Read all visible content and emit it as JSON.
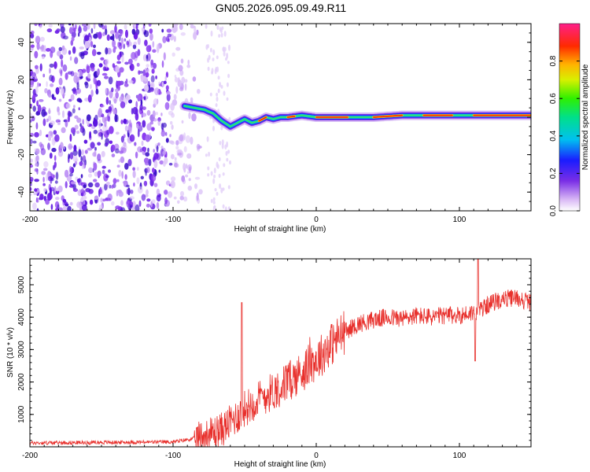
{
  "title": "GN05.2026.095.09.49.R11",
  "chart_data": [
    {
      "type": "heatmap",
      "xlabel": "Height of straight line (km)",
      "ylabel": "Frequency (Hz)",
      "xlim": [
        -200,
        150
      ],
      "ylim": [
        -50,
        50
      ],
      "xticks": [
        -200,
        -100,
        0,
        100
      ],
      "yticks": [
        -40,
        -20,
        0,
        20,
        40
      ],
      "colorbar": {
        "label": "Normalized spectral amplitude",
        "range": [
          0,
          1
        ],
        "ticks": [
          "0.0",
          "0.2",
          "0.4",
          "0.6",
          "0.8"
        ]
      },
      "noise_region": {
        "x_from": -200,
        "x_to": -77
      },
      "signal_trace": {
        "x": [
          -92,
          -85,
          -78,
          -72,
          -66,
          -60,
          -55,
          -50,
          -45,
          -40,
          -35,
          -30,
          -25,
          -20,
          -10,
          0,
          20,
          40,
          60,
          80,
          100,
          120,
          150
        ],
        "y": [
          6,
          5,
          4,
          2,
          -2,
          -5,
          -3,
          -1,
          -3,
          -2,
          0,
          -1,
          0,
          0,
          1,
          0,
          0,
          0,
          1,
          1,
          1,
          1,
          1
        ],
        "peak_x_ranges": [
          [
            -40,
            -35
          ],
          [
            -20,
            -15
          ],
          [
            0,
            22
          ],
          [
            40,
            60
          ],
          [
            75,
            95
          ],
          [
            110,
            150
          ]
        ]
      }
    },
    {
      "type": "line",
      "xlabel": "Height of straight line (km)",
      "ylabel": "SNR (10 * v/v)",
      "xlim": [
        -200,
        150
      ],
      "ylim": [
        0,
        5800
      ],
      "xticks": [
        -200,
        -100,
        0,
        100
      ],
      "yticks": [
        1000,
        2000,
        3000,
        4000,
        5000
      ],
      "series_color": "#e8302c",
      "envelope": {
        "x": [
          -200,
          -100,
          -85,
          -75,
          -65,
          -60,
          -55,
          -50,
          -45,
          -40,
          -35,
          -30,
          -25,
          -20,
          -15,
          -10,
          -5,
          0,
          5,
          10,
          20,
          30,
          40,
          50,
          60,
          70,
          80,
          90,
          100,
          105,
          110,
          115,
          120,
          125,
          130,
          140,
          150
        ],
        "y": [
          120,
          150,
          260,
          380,
          560,
          760,
          950,
          1180,
          1330,
          1480,
          1600,
          1720,
          1850,
          2000,
          2150,
          2320,
          2520,
          2680,
          2900,
          3150,
          3550,
          3800,
          3920,
          4000,
          3950,
          4050,
          4000,
          4050,
          4050,
          4100,
          4150,
          4250,
          4380,
          4480,
          4550,
          4600,
          4450
        ]
      },
      "spikes": [
        {
          "x": -52,
          "y": 4450
        },
        {
          "x": 113,
          "y": 5800
        },
        {
          "x": 111,
          "y": 2650
        }
      ]
    }
  ]
}
